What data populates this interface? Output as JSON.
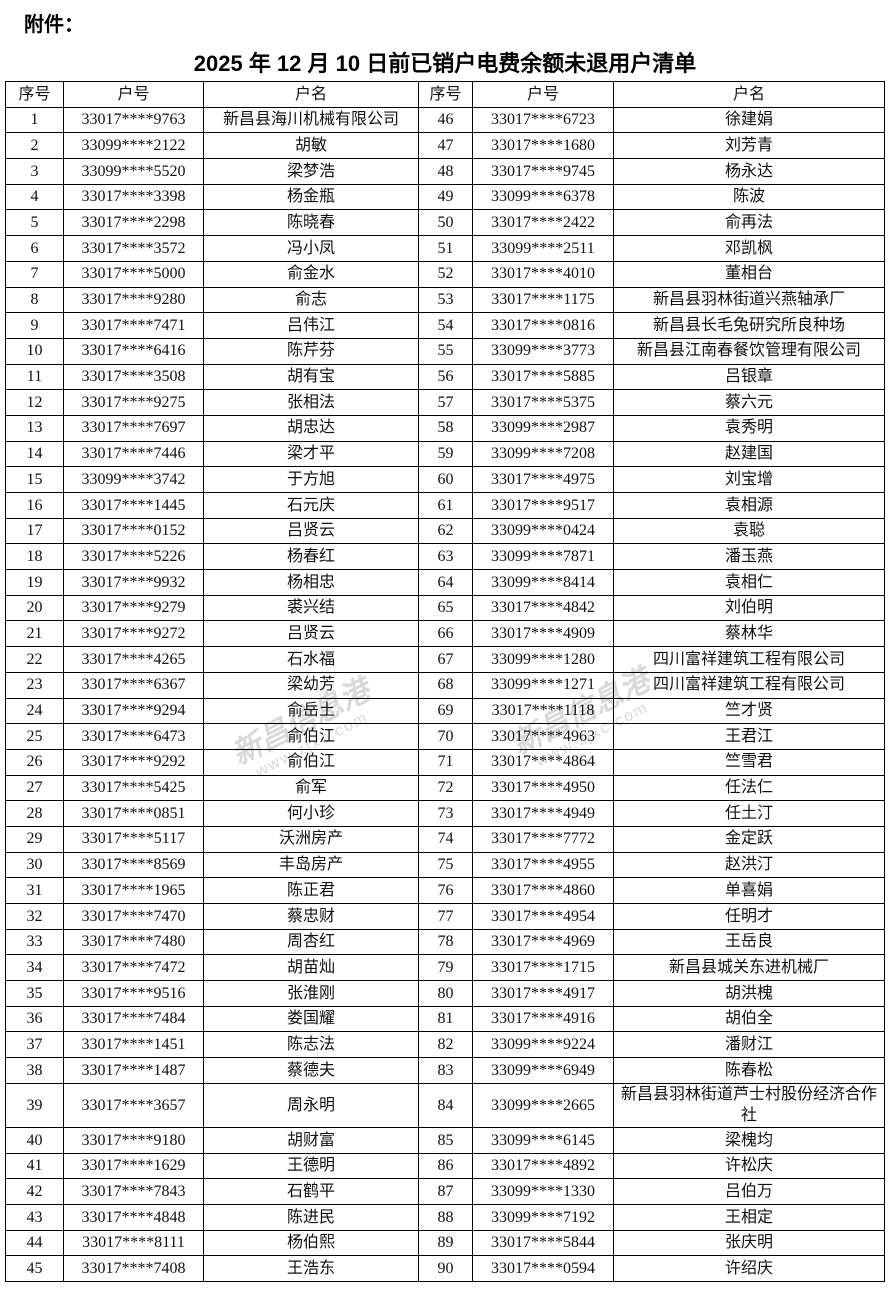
{
  "page": {
    "attachment_label": "附件：",
    "title": "2025 年 12 月 10 日前已销户电费余额未退用户清单"
  },
  "watermark": {
    "logo_text": "新昌信息港",
    "url_text": "www.zjxc.com",
    "color": "#d9d9d9"
  },
  "table": {
    "headers": [
      "序号",
      "户号",
      "户名",
      "序号",
      "户号",
      "户名"
    ],
    "rows": [
      {
        "no": "1",
        "account": "33017****9763",
        "name": "新昌县海川机械有限公司"
      },
      {
        "no": "2",
        "account": "33099****2122",
        "name": "胡敏"
      },
      {
        "no": "3",
        "account": "33099****5520",
        "name": "梁梦浩"
      },
      {
        "no": "4",
        "account": "33017****3398",
        "name": "杨金瓶"
      },
      {
        "no": "5",
        "account": "33017****2298",
        "name": "陈晓春"
      },
      {
        "no": "6",
        "account": "33017****3572",
        "name": "冯小凤"
      },
      {
        "no": "7",
        "account": "33017****5000",
        "name": "俞金水"
      },
      {
        "no": "8",
        "account": "33017****9280",
        "name": "俞志"
      },
      {
        "no": "9",
        "account": "33017****7471",
        "name": "吕伟江"
      },
      {
        "no": "10",
        "account": "33017****6416",
        "name": "陈芹芬"
      },
      {
        "no": "11",
        "account": "33017****3508",
        "name": "胡有宝"
      },
      {
        "no": "12",
        "account": "33017****9275",
        "name": "张相法"
      },
      {
        "no": "13",
        "account": "33017****7697",
        "name": "胡忠达"
      },
      {
        "no": "14",
        "account": "33017****7446",
        "name": "梁才平"
      },
      {
        "no": "15",
        "account": "33099****3742",
        "name": "于方旭"
      },
      {
        "no": "16",
        "account": "33017****1445",
        "name": "石元庆"
      },
      {
        "no": "17",
        "account": "33017****0152",
        "name": "吕贤云"
      },
      {
        "no": "18",
        "account": "33017****5226",
        "name": "杨春红"
      },
      {
        "no": "19",
        "account": "33017****9932",
        "name": "杨相忠"
      },
      {
        "no": "20",
        "account": "33017****9279",
        "name": "裘兴结"
      },
      {
        "no": "21",
        "account": "33017****9272",
        "name": "吕贤云"
      },
      {
        "no": "22",
        "account": "33017****4265",
        "name": "石水福"
      },
      {
        "no": "23",
        "account": "33017****6367",
        "name": "梁幼芳"
      },
      {
        "no": "24",
        "account": "33017****9294",
        "name": "俞岳土"
      },
      {
        "no": "25",
        "account": "33017****6473",
        "name": "俞伯江"
      },
      {
        "no": "26",
        "account": "33017****9292",
        "name": "俞伯江"
      },
      {
        "no": "27",
        "account": "33017****5425",
        "name": "俞军"
      },
      {
        "no": "28",
        "account": "33017****0851",
        "name": "何小珍"
      },
      {
        "no": "29",
        "account": "33017****5117",
        "name": "沃洲房产"
      },
      {
        "no": "30",
        "account": "33017****8569",
        "name": "丰岛房产"
      },
      {
        "no": "31",
        "account": "33017****1965",
        "name": "陈正君"
      },
      {
        "no": "32",
        "account": "33017****7470",
        "name": "蔡忠财"
      },
      {
        "no": "33",
        "account": "33017****7480",
        "name": "周杏红"
      },
      {
        "no": "34",
        "account": "33017****7472",
        "name": "胡苗灿"
      },
      {
        "no": "35",
        "account": "33017****9516",
        "name": "张淮刚"
      },
      {
        "no": "36",
        "account": "33017****7484",
        "name": "娄国耀"
      },
      {
        "no": "37",
        "account": "33017****1451",
        "name": "陈志法"
      },
      {
        "no": "38",
        "account": "33017****1487",
        "name": "蔡德夫"
      },
      {
        "no": "39",
        "account": "33017****3657",
        "name": "周永明"
      },
      {
        "no": "40",
        "account": "33017****9180",
        "name": "胡财富"
      },
      {
        "no": "41",
        "account": "33017****1629",
        "name": "王德明"
      },
      {
        "no": "42",
        "account": "33017****7843",
        "name": "石鹤平"
      },
      {
        "no": "43",
        "account": "33017****4848",
        "name": "陈进民"
      },
      {
        "no": "44",
        "account": "33017****8111",
        "name": "杨伯熙"
      },
      {
        "no": "45",
        "account": "33017****7408",
        "name": "王浩东"
      },
      {
        "no": "46",
        "account": "33017****6723",
        "name": "徐建娟"
      },
      {
        "no": "47",
        "account": "33017****1680",
        "name": "刘芳青"
      },
      {
        "no": "48",
        "account": "33017****9745",
        "name": "杨永达"
      },
      {
        "no": "49",
        "account": "33099****6378",
        "name": "陈波"
      },
      {
        "no": "50",
        "account": "33017****2422",
        "name": "俞再法"
      },
      {
        "no": "51",
        "account": "33099****2511",
        "name": "邓凯枫"
      },
      {
        "no": "52",
        "account": "33017****4010",
        "name": "董相台"
      },
      {
        "no": "53",
        "account": "33017****1175",
        "name": "新昌县羽林街道兴燕轴承厂"
      },
      {
        "no": "54",
        "account": "33017****0816",
        "name": "新昌县长毛兔研究所良种场"
      },
      {
        "no": "55",
        "account": "33099****3773",
        "name": "新昌县江南春餐饮管理有限公司"
      },
      {
        "no": "56",
        "account": "33017****5885",
        "name": "吕银章"
      },
      {
        "no": "57",
        "account": "33017****5375",
        "name": "蔡六元"
      },
      {
        "no": "58",
        "account": "33099****2987",
        "name": "袁秀明"
      },
      {
        "no": "59",
        "account": "33099****7208",
        "name": "赵建国"
      },
      {
        "no": "60",
        "account": "33017****4975",
        "name": "刘宝增"
      },
      {
        "no": "61",
        "account": "33017****9517",
        "name": "袁相源"
      },
      {
        "no": "62",
        "account": "33099****0424",
        "name": "袁聪"
      },
      {
        "no": "63",
        "account": "33099****7871",
        "name": "潘玉燕"
      },
      {
        "no": "64",
        "account": "33099****8414",
        "name": "袁相仁"
      },
      {
        "no": "65",
        "account": "33017****4842",
        "name": "刘伯明"
      },
      {
        "no": "66",
        "account": "33017****4909",
        "name": "蔡林华"
      },
      {
        "no": "67",
        "account": "33099****1280",
        "name": "四川富祥建筑工程有限公司"
      },
      {
        "no": "68",
        "account": "33099****1271",
        "name": "四川富祥建筑工程有限公司"
      },
      {
        "no": "69",
        "account": "33017****1118",
        "name": "竺才贤"
      },
      {
        "no": "70",
        "account": "33017****4963",
        "name": "王君江"
      },
      {
        "no": "71",
        "account": "33017****4864",
        "name": "竺雪君"
      },
      {
        "no": "72",
        "account": "33017****4950",
        "name": "任法仁"
      },
      {
        "no": "73",
        "account": "33017****4949",
        "name": "任土汀"
      },
      {
        "no": "74",
        "account": "33017****7772",
        "name": "金定跃"
      },
      {
        "no": "75",
        "account": "33017****4955",
        "name": "赵洪汀"
      },
      {
        "no": "76",
        "account": "33017****4860",
        "name": "单喜娟"
      },
      {
        "no": "77",
        "account": "33017****4954",
        "name": "任明才"
      },
      {
        "no": "78",
        "account": "33017****4969",
        "name": "王岳良"
      },
      {
        "no": "79",
        "account": "33017****1715",
        "name": "新昌县城关东进机械厂"
      },
      {
        "no": "80",
        "account": "33017****4917",
        "name": "胡洪槐"
      },
      {
        "no": "81",
        "account": "33017****4916",
        "name": "胡伯全"
      },
      {
        "no": "82",
        "account": "33099****9224",
        "name": "潘财江"
      },
      {
        "no": "83",
        "account": "33099****6949",
        "name": "陈春松"
      },
      {
        "no": "84",
        "account": "33099****2665",
        "name": "新昌县羽林街道芦士村股份经济合作社"
      },
      {
        "no": "85",
        "account": "33099****6145",
        "name": "梁槐均"
      },
      {
        "no": "86",
        "account": "33017****4892",
        "name": "许松庆"
      },
      {
        "no": "87",
        "account": "33099****1330",
        "name": "吕伯万"
      },
      {
        "no": "88",
        "account": "33099****7192",
        "name": "王相定"
      },
      {
        "no": "89",
        "account": "33017****5844",
        "name": "张庆明"
      },
      {
        "no": "90",
        "account": "33017****0594",
        "name": "许绍庆"
      }
    ]
  }
}
